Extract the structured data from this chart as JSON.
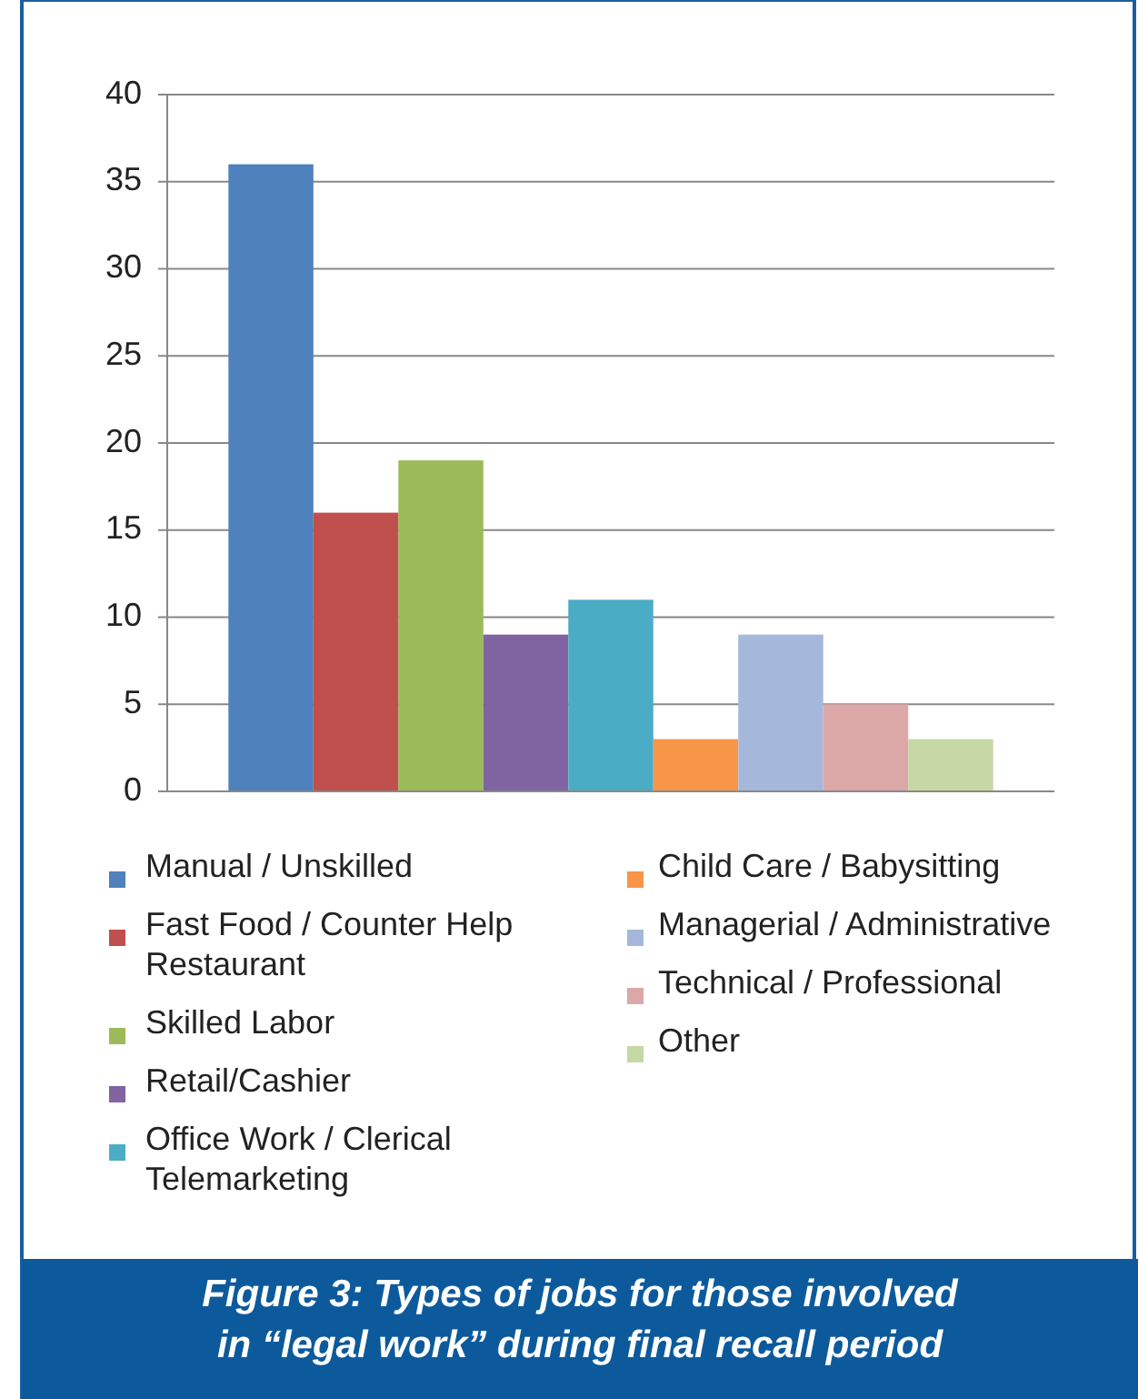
{
  "chart_data": {
    "type": "bar",
    "title": "Figure 3:  Types of jobs  for those involved in “legal work” during final recall period",
    "categories": [
      null
    ],
    "ylim": [
      0,
      40
    ],
    "yticks": [
      0,
      5,
      10,
      15,
      20,
      25,
      30,
      35,
      40
    ],
    "grid": "y",
    "legend": "bottom",
    "series": [
      {
        "name": "Manual / Unskilled",
        "color": "#4f81bd",
        "values": [
          36
        ]
      },
      {
        "name": "Fast Food / Counter Help Restaurant",
        "color": "#c0504d",
        "values": [
          16
        ]
      },
      {
        "name": "Skilled Labor",
        "color": "#9bbb59",
        "values": [
          19
        ]
      },
      {
        "name": "Retail/Cashier",
        "color": "#8064a2",
        "values": [
          9
        ]
      },
      {
        "name": "Office Work / Clerical Telemarketing",
        "color": "#4bacc6",
        "values": [
          11
        ]
      },
      {
        "name": "Child Care / Babysitting",
        "color": "#f79646",
        "values": [
          3
        ]
      },
      {
        "name": "Managerial / Administrative",
        "color": "#a5b8dc",
        "values": [
          9
        ]
      },
      {
        "name": "Technical / Professional",
        "color": "#dca8a7",
        "values": [
          5
        ]
      },
      {
        "name": "Other",
        "color": "#c6d8a6",
        "values": [
          3
        ]
      }
    ]
  }
}
